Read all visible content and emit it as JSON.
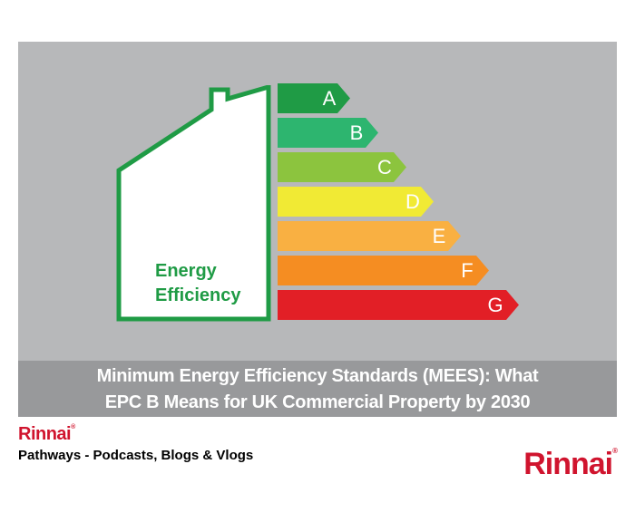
{
  "graphic": {
    "label_lines": [
      "Energy",
      "Efficiency"
    ],
    "bands": [
      {
        "letter": "A",
        "color": "#1f9b45"
      },
      {
        "letter": "B",
        "color": "#2db56f"
      },
      {
        "letter": "C",
        "color": "#8cc43e"
      },
      {
        "letter": "D",
        "color": "#f1ea34"
      },
      {
        "letter": "E",
        "color": "#f9b042"
      },
      {
        "letter": "F",
        "color": "#f58d22"
      },
      {
        "letter": "G",
        "color": "#e21f26"
      }
    ],
    "house_color": "#1f9b45"
  },
  "caption": {
    "line1": "Minimum Energy Efficiency Standards (MEES): What",
    "line2": "EPC B Means for UK Commercial Property by 2030"
  },
  "footer": {
    "brand_small": "Rinnai",
    "tagline": "Pathways - Podcasts, Blogs & Vlogs",
    "brand_large": "Rinnai",
    "brand_color": "#d0142e"
  }
}
